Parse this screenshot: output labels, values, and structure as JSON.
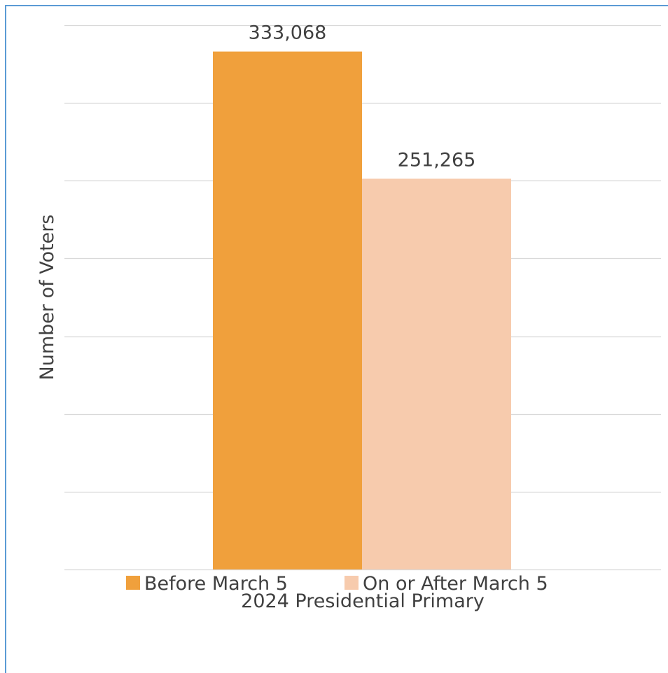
{
  "chart_data": {
    "type": "bar",
    "title": "",
    "xlabel": "",
    "ylabel": "Number of Voters",
    "categories": [
      "2024 Presidential Primary"
    ],
    "series": [
      {
        "name": "Before March 5",
        "values": [
          333068
        ],
        "value_labels": [
          "333,068"
        ],
        "color": "#f0a03c"
      },
      {
        "name": "On or After March 5",
        "values": [
          251265
        ],
        "value_labels": [
          "251,265"
        ],
        "color": "#f7cbad"
      }
    ],
    "ylim": [
      0,
      350000
    ],
    "gridline_step": 50000,
    "grid": true,
    "y_tick_labels_shown": false,
    "legend": "bottom"
  }
}
